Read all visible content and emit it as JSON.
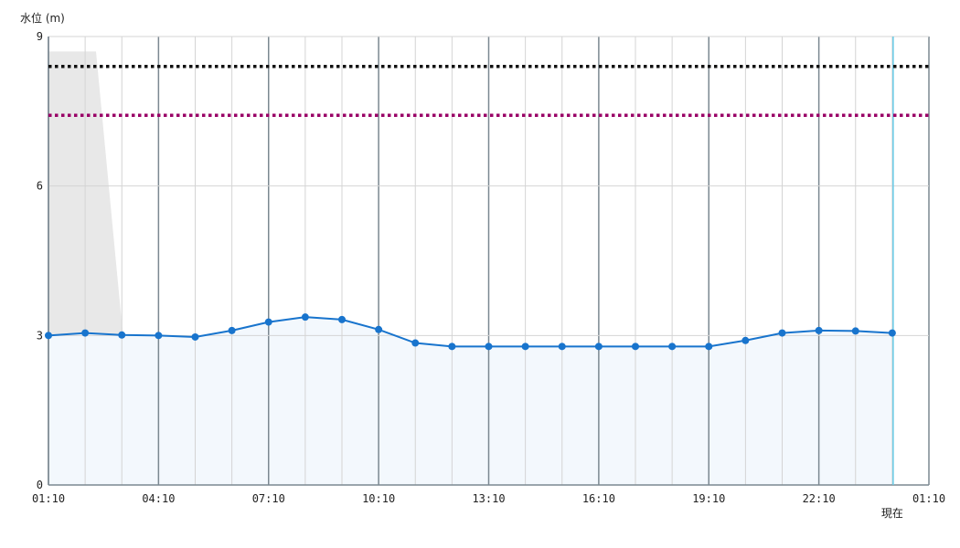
{
  "chart_data": {
    "type": "line",
    "ylabel": "水位 (m)",
    "ylim": [
      0,
      9
    ],
    "y_ticks": [
      0,
      3,
      6,
      9
    ],
    "x_ticks": [
      "01:10",
      "04:10",
      "07:10",
      "10:10",
      "13:10",
      "16:10",
      "19:10",
      "22:10",
      "01:10"
    ],
    "now_label": "現在",
    "grid": true,
    "series": [
      {
        "values": [
          3.0,
          3.05,
          3.01,
          3.0,
          2.97,
          3.1,
          3.27,
          3.37,
          3.32,
          3.12,
          2.85,
          2.78,
          2.78,
          2.78,
          2.78,
          2.78,
          2.78,
          2.78,
          2.78,
          2.9,
          3.05,
          3.1,
          3.09,
          3.05
        ],
        "color": "#1874cd"
      }
    ],
    "reference_lines": [
      {
        "value": 8.4,
        "color": "#111111",
        "style": "dotted"
      },
      {
        "value": 7.42,
        "color": "#990066",
        "style": "dotted"
      }
    ],
    "colors": {
      "series_fill": "#f3f8fd",
      "gray_area": "#e8e8e8",
      "now_line": "#66c9e6",
      "major_grid": "#7b8891",
      "minor_grid": "#d4d4d4"
    }
  }
}
